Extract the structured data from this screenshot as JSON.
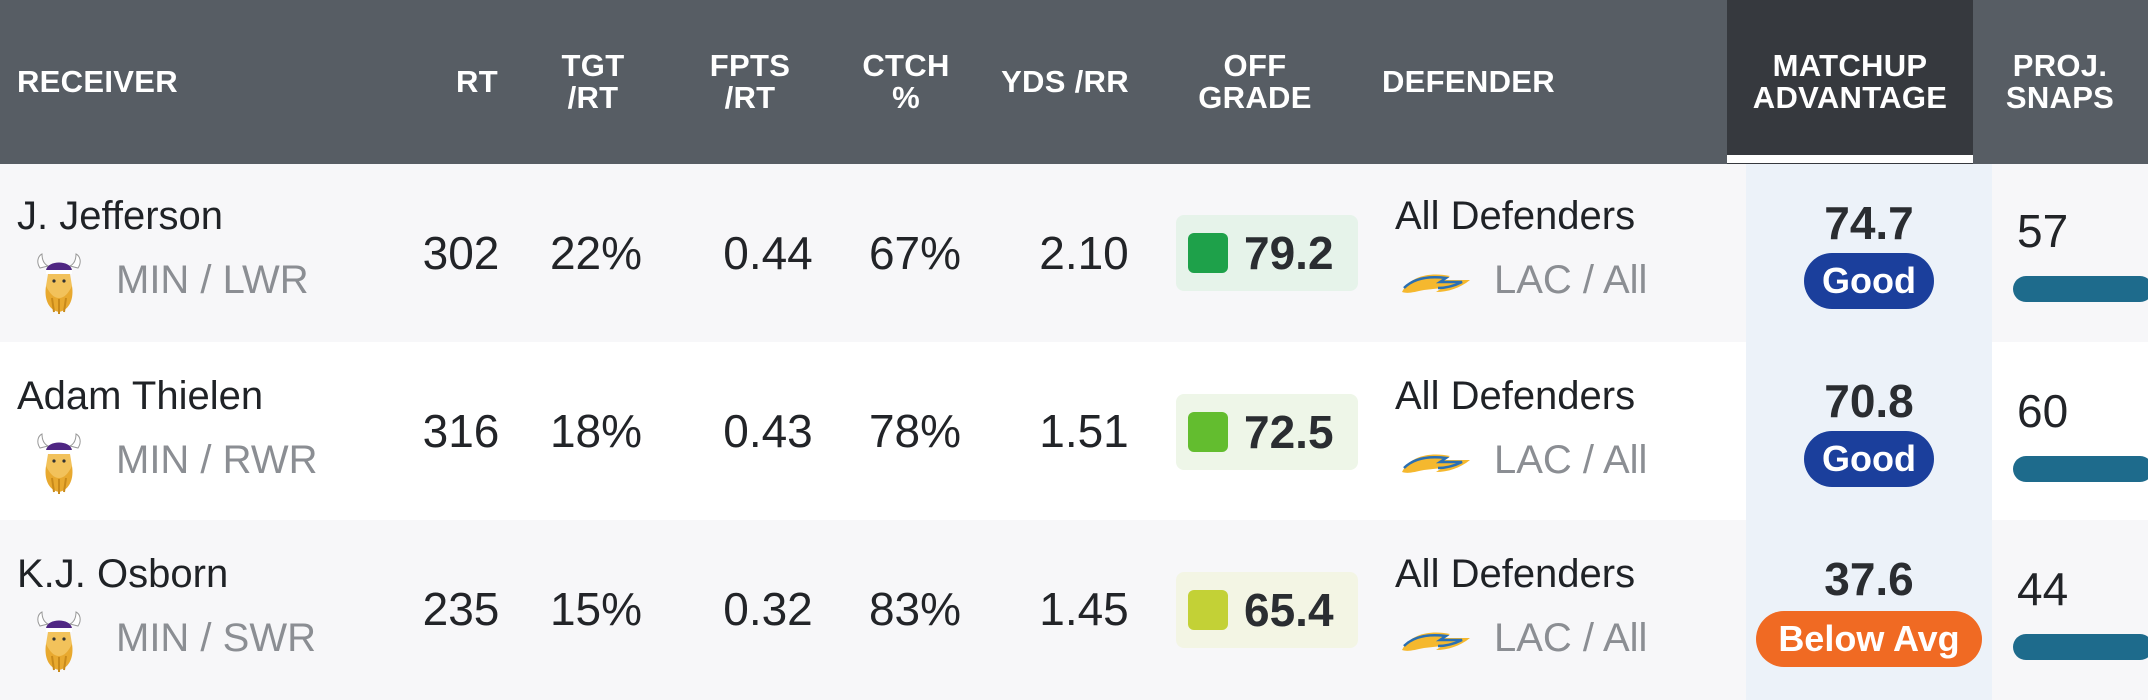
{
  "colors": {
    "header_bg": "#575d64",
    "header_active_bg": "#36393e",
    "badge_good": "#1b3f9c",
    "badge_below_avg": "#f06a23",
    "grade_high": "#1ea14a",
    "grade_mid": "#63bd2f",
    "grade_low": "#c3d136",
    "snap_bar": "#1e6b8c"
  },
  "header": {
    "receiver": "RECEIVER",
    "rt": "RT",
    "tgt_rt_1": "TGT",
    "tgt_rt_2": "/RT",
    "fpts_rt_1": "FPTS",
    "fpts_rt_2": "/RT",
    "ctch_1": "CTCH",
    "ctch_2": "%",
    "yds_rr": "YDS /RR",
    "off_grade_1": "OFF",
    "off_grade_2": "GRADE",
    "defender": "DEFENDER",
    "matchup_1": "MATCHUP",
    "matchup_2": "ADVANTAGE",
    "proj_1": "PROJ.",
    "proj_2": "SNAPS"
  },
  "rows": [
    {
      "name": "J. Jefferson",
      "team_pos": "MIN / LWR",
      "team_logo": "vikings-logo-icon",
      "rt": "302",
      "tgt_rt": "22%",
      "fpts_rt": "0.44",
      "ctch": "67%",
      "yds_rr": "2.10",
      "off_grade": "79.2",
      "defender": "All Defenders",
      "def_team": "LAC / All",
      "def_logo": "chargers-bolt-icon",
      "matchup": "74.7",
      "matchup_label": "Good",
      "proj_snaps": "57"
    },
    {
      "name": "Adam Thielen",
      "team_pos": "MIN / RWR",
      "team_logo": "vikings-logo-icon",
      "rt": "316",
      "tgt_rt": "18%",
      "fpts_rt": "0.43",
      "ctch": "78%",
      "yds_rr": "1.51",
      "off_grade": "72.5",
      "defender": "All Defenders",
      "def_team": "LAC / All",
      "def_logo": "chargers-bolt-icon",
      "matchup": "70.8",
      "matchup_label": "Good",
      "proj_snaps": "60"
    },
    {
      "name": "K.J. Osborn",
      "team_pos": "MIN / SWR",
      "team_logo": "vikings-logo-icon",
      "rt": "235",
      "tgt_rt": "15%",
      "fpts_rt": "0.32",
      "ctch": "83%",
      "yds_rr": "1.45",
      "off_grade": "65.4",
      "defender": "All Defenders",
      "def_team": "LAC / All",
      "def_logo": "chargers-bolt-icon",
      "matchup": "37.6",
      "matchup_label": "Below Avg",
      "proj_snaps": "44"
    }
  ]
}
